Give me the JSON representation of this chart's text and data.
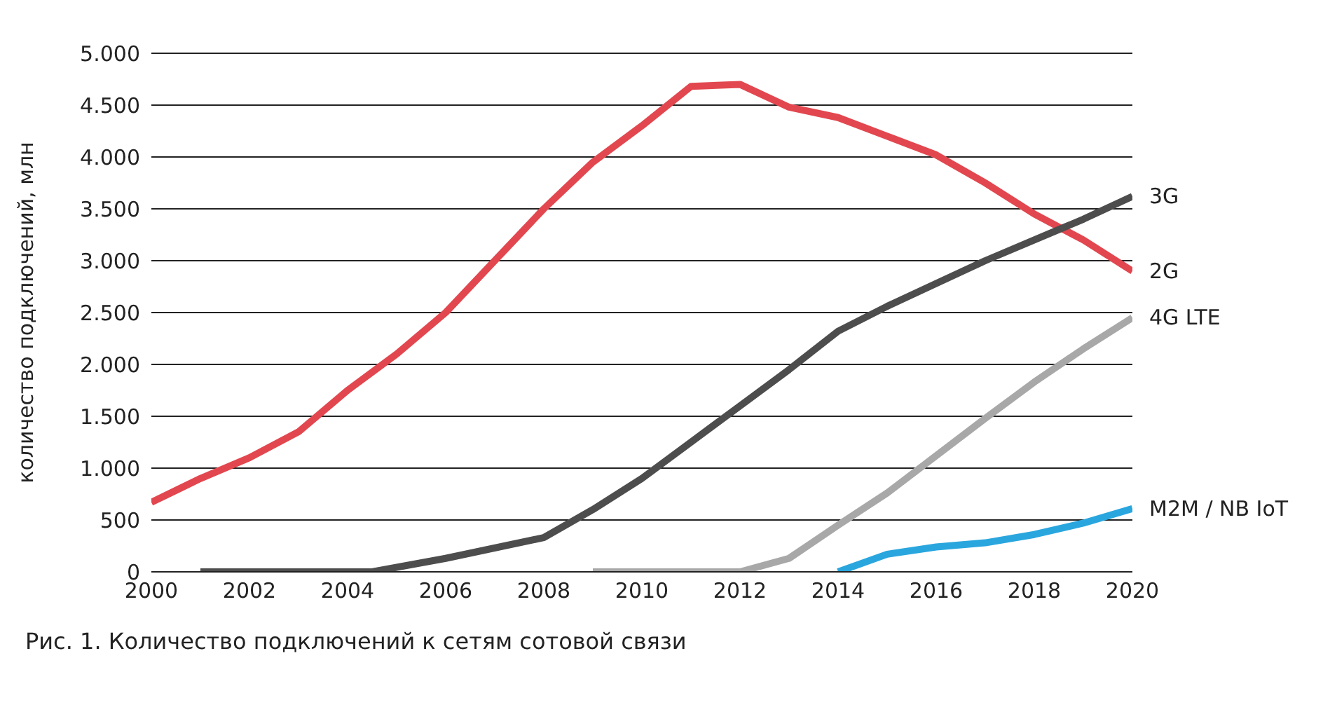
{
  "chart_data": {
    "type": "line",
    "ylabel": "количество подключений, млн",
    "xlim": [
      2000,
      2020
    ],
    "xticks": [
      2000,
      2002,
      2004,
      2006,
      2008,
      2010,
      2012,
      2014,
      2016,
      2018,
      2020
    ],
    "ylim": [
      0,
      5000
    ],
    "yticks": [
      0,
      500,
      {
        "value": 1000,
        "label": "1.000"
      },
      {
        "value": 1500,
        "label": "1.500"
      },
      {
        "value": 2000,
        "label": "2.000"
      },
      {
        "value": 2500,
        "label": "2.500"
      },
      {
        "value": 3000,
        "label": "3.000"
      },
      {
        "value": 3500,
        "label": "3.500"
      },
      {
        "value": 4000,
        "label": "4.000"
      },
      {
        "value": 4500,
        "label": "4.500"
      },
      {
        "value": 5000,
        "label": "5.000"
      }
    ],
    "grid": "y",
    "legend": false,
    "marker": "none",
    "line_style": "solid",
    "annotations": [
      "Рис. 1. Количество подключений к сетям сотовой связи"
    ],
    "series": [
      {
        "name": "2G",
        "color": "#e2474f",
        "x": [
          2000,
          2001,
          2002,
          2003,
          2004,
          2005,
          2006,
          2007,
          2008,
          2009,
          2010,
          2011,
          2012,
          2013,
          2014,
          2015,
          2016,
          2017,
          2018,
          2019,
          2020
        ],
        "values": [
          670,
          900,
          1100,
          1350,
          1750,
          2100,
          2500,
          3000,
          3500,
          3950,
          4300,
          4680,
          4700,
          4480,
          4380,
          4200,
          4020,
          3750,
          3450,
          3200,
          2900
        ]
      },
      {
        "name": "3G",
        "color": "#4d4d4d",
        "x": [
          2001,
          2004.5,
          2006,
          2008,
          2009,
          2010,
          2011,
          2012,
          2013,
          2014,
          2015,
          2016,
          2017,
          2018,
          2019,
          2020
        ],
        "values": [
          0,
          0,
          130,
          330,
          600,
          900,
          1250,
          1600,
          1950,
          2320,
          2560,
          2780,
          3000,
          3200,
          3400,
          3620
        ]
      },
      {
        "name": "4G LTE",
        "color": "#a8a8a8",
        "x": [
          2009,
          2012,
          2013,
          2014,
          2015,
          2016,
          2017,
          2018,
          2019,
          2020
        ],
        "values": [
          0,
          0,
          130,
          450,
          760,
          1120,
          1480,
          1830,
          2150,
          2450
        ]
      },
      {
        "name": "M2M / NB IoT",
        "color": "#2aa6de",
        "x": [
          2014,
          2015,
          2016,
          2017,
          2018,
          2019,
          2020
        ],
        "values": [
          0,
          170,
          240,
          280,
          360,
          470,
          610
        ]
      }
    ]
  }
}
